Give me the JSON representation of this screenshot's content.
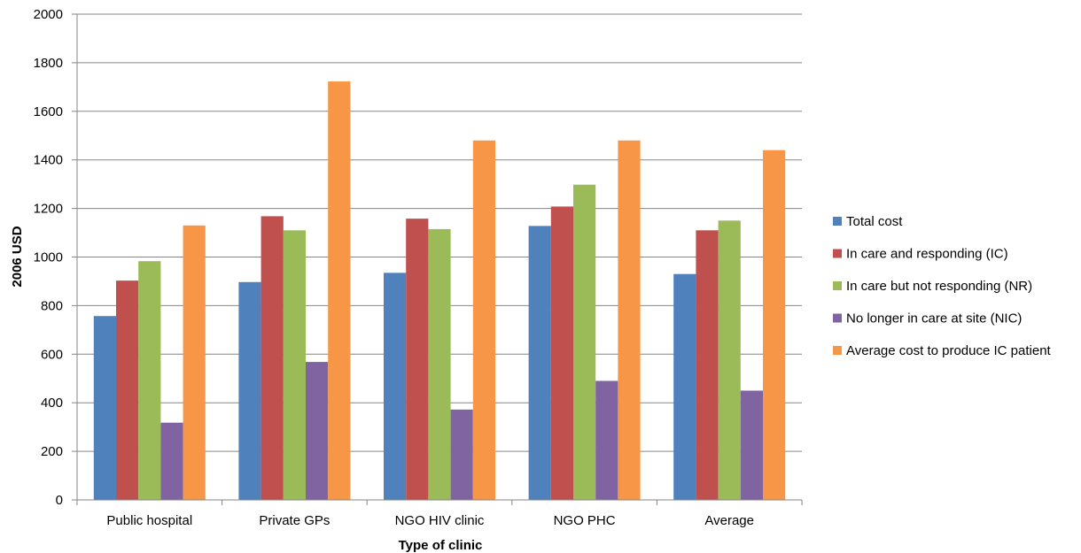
{
  "chart_data": {
    "type": "bar",
    "title": "",
    "xlabel": "Type of clinic",
    "ylabel": "2006 USD",
    "ylim": [
      0,
      2000
    ],
    "yticks": [
      0,
      200,
      400,
      600,
      800,
      1000,
      1200,
      1400,
      1600,
      1800,
      2000
    ],
    "grid": true,
    "legend_position": "right",
    "categories": [
      "Public hospital",
      "Private GPs",
      "NGO HIV clinic",
      "NGO PHC",
      "Average"
    ],
    "series": [
      {
        "name": "Total cost",
        "color": "#4f81bd",
        "values": [
          757,
          897,
          935,
          1128,
          930
        ]
      },
      {
        "name": "In care and responding (IC)",
        "color": "#c0504d",
        "values": [
          903,
          1168,
          1158,
          1208,
          1110
        ]
      },
      {
        "name": "In care but not responding (NR)",
        "color": "#9bbb59",
        "values": [
          983,
          1110,
          1115,
          1298,
          1150
        ]
      },
      {
        "name": "No longer in care at site (NIC)",
        "color": "#8064a2",
        "values": [
          318,
          568,
          372,
          490,
          450
        ]
      },
      {
        "name": "Average cost to produce IC patient",
        "color": "#f79646",
        "values": [
          1130,
          1723,
          1480,
          1480,
          1440
        ]
      }
    ]
  }
}
